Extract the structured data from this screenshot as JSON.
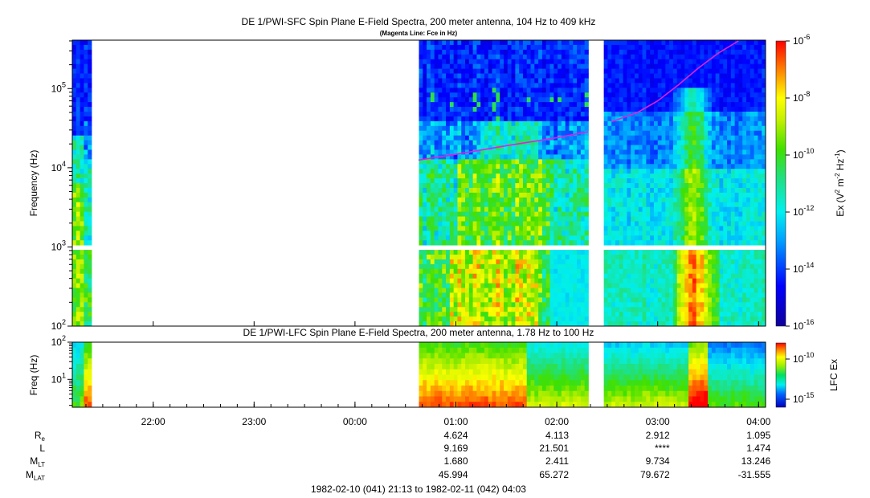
{
  "chart_data": [
    {
      "type": "heatmap",
      "title": "DE 1/PWI-SFC  Spin Plane E-Field Spectra, 200 meter antenna, 104 Hz to 409 kHz",
      "subtitle": "(Magenta Line: Fce in Hz)",
      "ylabel": "Frequency (Hz)",
      "yscale": "log",
      "ylim": [
        100,
        409000
      ],
      "yticks": [
        {
          "value": 100,
          "base": "10",
          "exp": "2"
        },
        {
          "value": 1000,
          "base": "10",
          "exp": "3"
        },
        {
          "value": 10000,
          "base": "10",
          "exp": "4"
        },
        {
          "value": 100000,
          "base": "10",
          "exp": "5"
        }
      ],
      "colorbar": {
        "label_pre": "Ex (V",
        "label_sup1": "2",
        "label_mid": " m",
        "label_sup2": "-2",
        "label_mid2": " Hz",
        "label_sup3": "-1",
        "label_post": ")",
        "scale": "log",
        "range": [
          1e-16,
          1e-06
        ],
        "ticks": [
          {
            "value": 1e-06,
            "base": "10",
            "exp": "-6"
          },
          {
            "value": 1e-08,
            "base": "10",
            "exp": "-8"
          },
          {
            "value": 1e-10,
            "base": "10",
            "exp": "-10"
          },
          {
            "value": 1e-12,
            "base": "10",
            "exp": "-12"
          },
          {
            "value": 1e-14,
            "base": "10",
            "exp": "-14"
          },
          {
            "value": 1e-16,
            "base": "10",
            "exp": "-16"
          }
        ]
      },
      "fce_line": {
        "name": "Fce",
        "color": "#e020e0",
        "segments": [
          [
            [
              0.63,
              12500
            ],
            [
              1.0,
              14800
            ],
            [
              1.5,
              19000
            ],
            [
              2.0,
              24000
            ],
            [
              2.31,
              28500
            ]
          ],
          [
            [
              2.54,
              38000
            ],
            [
              2.8,
              50000
            ],
            [
              3.0,
              70000
            ],
            [
              3.2,
              110000
            ],
            [
              3.4,
              180000
            ],
            [
              3.6,
              280000
            ],
            [
              3.8,
              400000
            ]
          ]
        ]
      }
    },
    {
      "type": "heatmap",
      "title": "DE 1/PWI-LFC  Spin Plane E-Field Spectra, 200 meter antenna, 1.78 Hz to 100 Hz",
      "ylabel": "Freq (Hz)",
      "yscale": "log",
      "ylim": [
        1.78,
        100
      ],
      "yticks": [
        {
          "value": 10,
          "base": "10",
          "exp": "1"
        },
        {
          "value": 100,
          "base": "10",
          "exp": "2"
        }
      ],
      "colorbar": {
        "label": "LFC Ex",
        "scale": "log",
        "range": [
          1e-16,
          1e-08
        ],
        "ticks": [
          {
            "value": 1e-10,
            "base": "10",
            "exp": "-10"
          },
          {
            "value": 1e-15,
            "base": "10",
            "exp": "-15"
          }
        ]
      }
    }
  ],
  "time_axis": {
    "start_label": "21:13",
    "end_label": "04:03",
    "ticks": [
      {
        "t": "22:00",
        "label": "22:00"
      },
      {
        "t": "23:00",
        "label": "23:00"
      },
      {
        "t": "00:00",
        "label": "00:00"
      },
      {
        "t": "01:00",
        "label": "01:00"
      },
      {
        "t": "02:00",
        "label": "02:00"
      },
      {
        "t": "03:00",
        "label": "03:00"
      },
      {
        "t": "04:00",
        "label": "04:00"
      }
    ]
  },
  "data_gaps": [
    {
      "from": "21:23",
      "to": "00:38"
    },
    {
      "from": "02:18",
      "to": "02:29"
    }
  ],
  "ephemeris": {
    "labels": [
      {
        "main": "R",
        "sub": "e"
      },
      {
        "main": "L",
        "sub": ""
      },
      {
        "main": "M",
        "sub": "LT"
      },
      {
        "main": "M",
        "sub": "LAT"
      }
    ],
    "columns": [
      {
        "time": "01:00",
        "values": [
          "4.624",
          "9.169",
          "1.680",
          "45.994"
        ]
      },
      {
        "time": "02:00",
        "values": [
          "4.113",
          "21.501",
          "2.411",
          "65.272"
        ]
      },
      {
        "time": "03:00",
        "values": [
          "2.912",
          "****",
          "9.734",
          "79.672"
        ]
      },
      {
        "time": "04:00",
        "values": [
          "1.095",
          "1.474",
          "13.246",
          "-31.555"
        ]
      }
    ]
  },
  "footer": "1982-02-10 (041) 21:13 to 1982-02-11 (042) 04:03"
}
